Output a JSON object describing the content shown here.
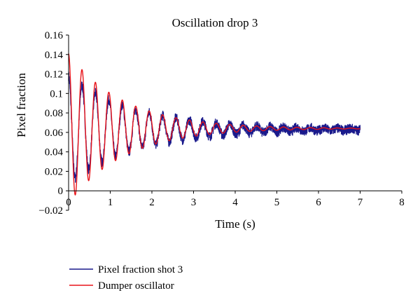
{
  "chart_data": {
    "type": "line",
    "title": "Oscillation drop 3",
    "xlabel": "Time (s)",
    "ylabel": "Pixel fraction",
    "xlim": [
      0,
      8
    ],
    "ylim": [
      -0.02,
      0.16
    ],
    "xticks": [
      "0",
      "1",
      "2",
      "3",
      "4",
      "5",
      "6",
      "7",
      "8"
    ],
    "yticks": [
      "−0.02",
      "0",
      "0.02",
      "0.04",
      "0.06",
      "0.08",
      "0.1",
      "0.12",
      "0.14",
      "0.16"
    ],
    "grid": false,
    "legend_position": "bottom-left",
    "series": [
      {
        "name": "Pixel fraction shot 3",
        "color": "#1a1a8c",
        "x_range": [
          0,
          7
        ],
        "baseline": 0.063,
        "initial_amplitude": 0.055,
        "damping_per_s": 0.6,
        "frequency_hz": 3.1,
        "noise_band": 0.005
      },
      {
        "name": "Dumper oscillator",
        "color": "#e8141a",
        "x_range": [
          0,
          7
        ],
        "baseline": 0.064,
        "initial_amplitude": 0.077,
        "damping_per_s": 0.75,
        "frequency_hz": 3.1,
        "noise_band": 0
      }
    ]
  }
}
